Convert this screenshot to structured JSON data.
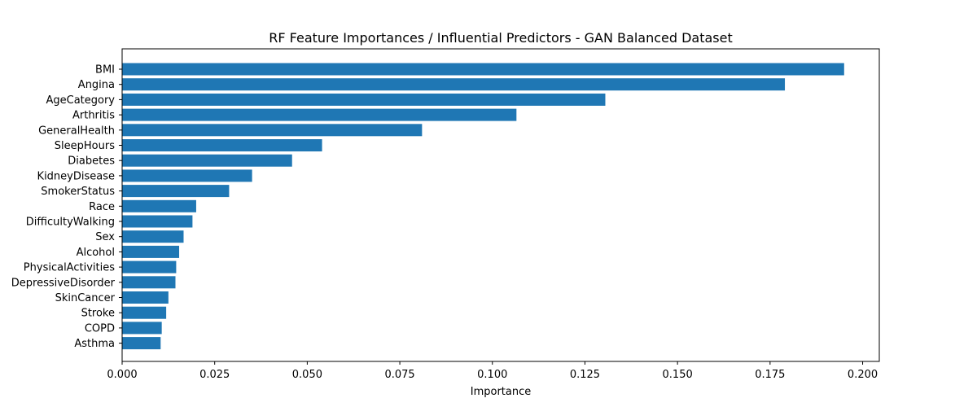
{
  "chart_data": {
    "type": "bar",
    "orientation": "horizontal",
    "title": "RF Feature Importances / Influential Predictors - GAN Balanced Dataset",
    "xlabel": "Importance",
    "ylabel": "",
    "xlim": [
      0,
      0.2045
    ],
    "x_ticks": [
      "0.000",
      "0.025",
      "0.050",
      "0.075",
      "0.100",
      "0.125",
      "0.150",
      "0.175",
      "0.200"
    ],
    "grid": false,
    "bar_color": "#1f77b4",
    "categories": [
      "BMI",
      "Angina",
      "AgeCategory",
      "Arthritis",
      "GeneralHealth",
      "SleepHours",
      "Diabetes",
      "KidneyDisease",
      "SmokerStatus",
      "Race",
      "DifficultyWalking",
      "Sex",
      "Alcohol",
      "PhysicalActivities",
      "DepressiveDisorder",
      "SkinCancer",
      "Stroke",
      "COPD",
      "Asthma"
    ],
    "values": [
      0.195,
      0.179,
      0.1305,
      0.1065,
      0.081,
      0.054,
      0.0459,
      0.0351,
      0.0289,
      0.02,
      0.019,
      0.0166,
      0.0154,
      0.0146,
      0.0144,
      0.0125,
      0.0119,
      0.0107,
      0.0104
    ]
  }
}
